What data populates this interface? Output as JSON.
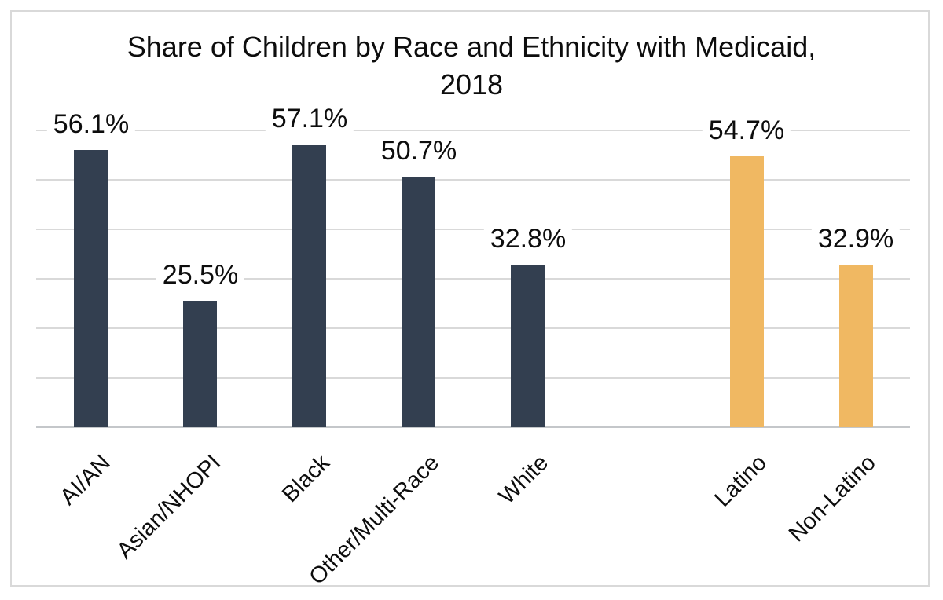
{
  "chart_data": {
    "type": "bar",
    "title": "Share of Children by Race and Ethnicity with Medicaid, 2018",
    "title_lines": [
      "Share of Children by Race and Ethnicity with Medicaid,",
      "2018"
    ],
    "categories": [
      "AI/AN",
      "Asian/NHOPI",
      "Black",
      "Other/Multi-Race",
      "White",
      "Latino",
      "Non-Latino"
    ],
    "values": [
      56.1,
      25.5,
      57.1,
      50.7,
      32.8,
      54.7,
      32.9
    ],
    "data_labels": [
      "56.1%",
      "25.5%",
      "57.1%",
      "50.7%",
      "32.8%",
      "54.7%",
      "32.9%"
    ],
    "groups": [
      "race",
      "race",
      "race",
      "race",
      "race",
      "ethnicity",
      "ethnicity"
    ],
    "series_colors": {
      "race": "#333F50",
      "ethnicity": "#F0B862"
    },
    "slot_indices": [
      0,
      1,
      2,
      3,
      4,
      6,
      7
    ],
    "num_slots": 8,
    "xlabel": "",
    "ylabel": "",
    "ylim": [
      0,
      60
    ],
    "gridline_step_percent": 10,
    "grid": "horizontal",
    "legend_position": "none",
    "gridline_color": "#d9d9d9",
    "axis_line_color": "#c4c7ca",
    "border_color": "#d9d9d9"
  }
}
